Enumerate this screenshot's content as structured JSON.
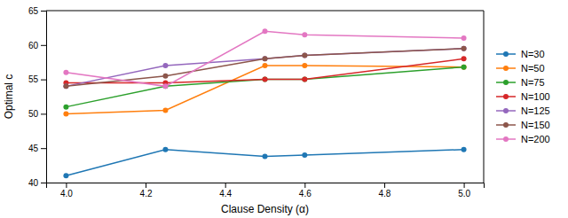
{
  "chart_data": {
    "type": "line",
    "xlabel": "Clause Density (α)",
    "ylabel": "Optimal c",
    "x": [
      4.0,
      4.25,
      4.5,
      4.6,
      5.0
    ],
    "series": [
      {
        "name": "N=30",
        "marker": "circle",
        "values": [
          41.0,
          44.8,
          43.8,
          44.0,
          44.8
        ]
      },
      {
        "name": "N=50",
        "marker": "circle",
        "values": [
          50.0,
          50.5,
          57.0,
          57.0,
          56.8
        ]
      },
      {
        "name": "N=75",
        "marker": "circle",
        "values": [
          51.0,
          54.0,
          55.0,
          55.0,
          56.8
        ]
      },
      {
        "name": "N=100",
        "marker": "circle",
        "values": [
          54.5,
          54.5,
          55.0,
          55.0,
          58.0
        ]
      },
      {
        "name": "N=125",
        "marker": "circle",
        "values": [
          54.0,
          57.0,
          58.0,
          58.5,
          59.5
        ]
      },
      {
        "name": "N=150",
        "marker": "circle",
        "values": [
          54.0,
          55.5,
          58.0,
          58.5,
          59.5
        ]
      },
      {
        "name": "N=200",
        "marker": "circle",
        "values": [
          56.0,
          54.0,
          62.0,
          61.5,
          61.0
        ]
      }
    ],
    "xlim": [
      3.95,
      5.05
    ],
    "ylim": [
      40,
      65
    ],
    "xticks": [
      {
        "value": 4.0,
        "label": "4.0"
      },
      4.2,
      4.4,
      4.6,
      4.8,
      {
        "value": 5.0,
        "label": "5.0"
      }
    ],
    "yticks": [
      40,
      45,
      50,
      55,
      60,
      65
    ],
    "grid": false,
    "legend": "right"
  }
}
